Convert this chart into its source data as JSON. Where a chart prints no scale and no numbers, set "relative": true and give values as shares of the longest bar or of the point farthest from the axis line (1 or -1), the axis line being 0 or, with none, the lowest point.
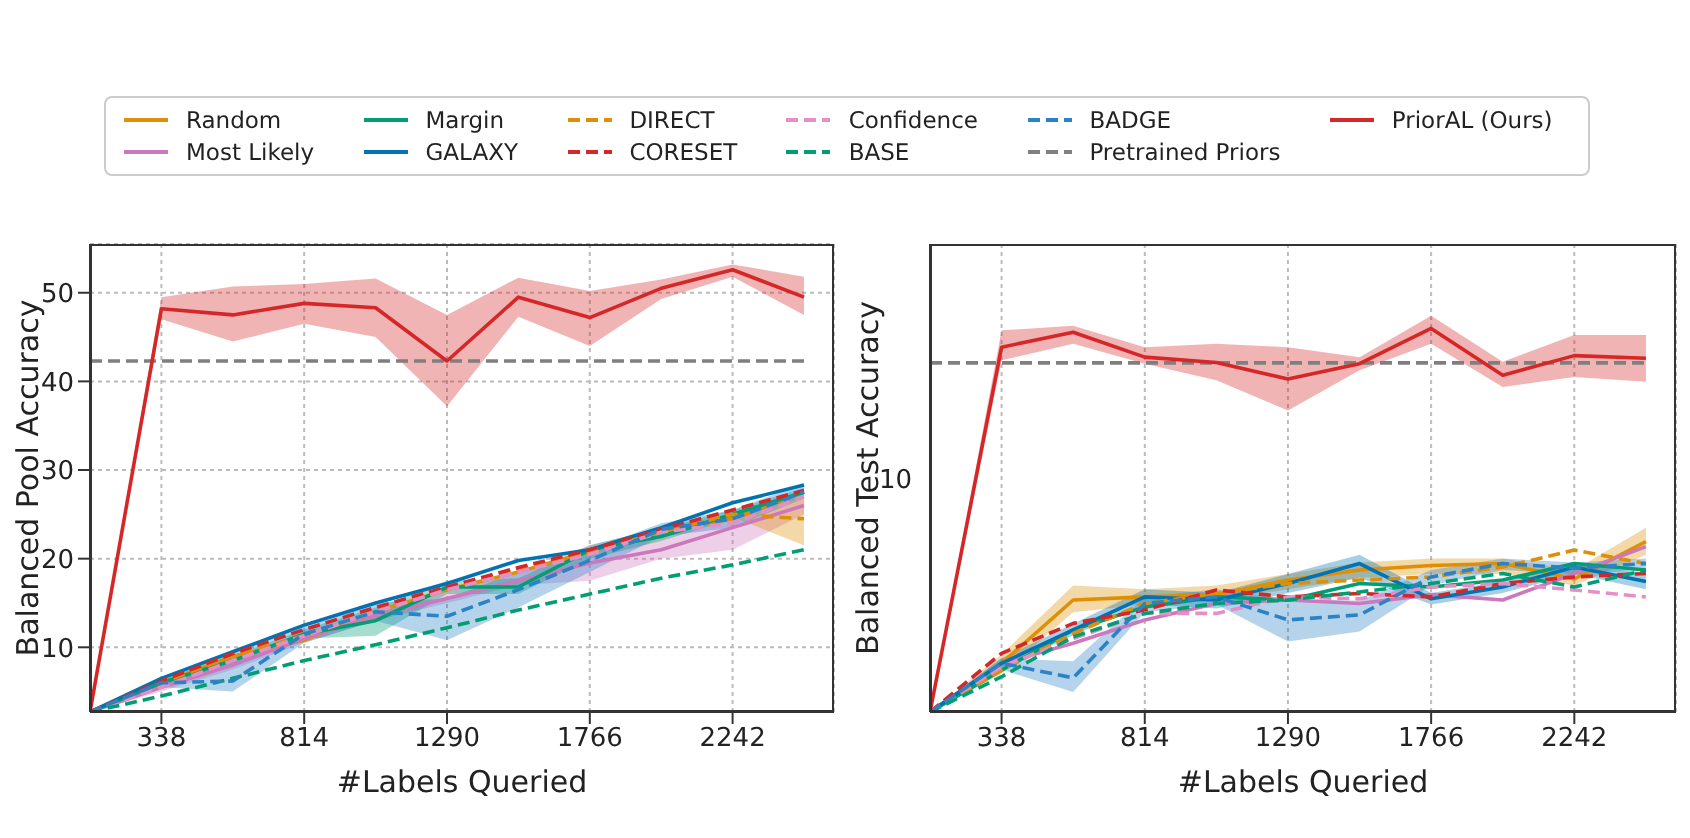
{
  "chart_data": [
    {
      "type": "line",
      "xlabel": "#Labels Queried",
      "ylabel": "Balanced Pool Accuracy",
      "x": [
        100,
        338,
        576,
        814,
        1052,
        1290,
        1528,
        1766,
        2004,
        2242,
        2480
      ],
      "xlim": [
        100,
        2580
      ],
      "xticks": [
        338,
        814,
        1290,
        1766,
        2242
      ],
      "ylim": [
        2.7,
        55.5
      ],
      "yticks": [
        10,
        20,
        30,
        40,
        50
      ],
      "grid": true,
      "legend": "top",
      "marker": "none",
      "series": [
        {
          "name": "Random",
          "color": "#de8f05",
          "line_style": "solid",
          "values": [
            2.7,
            6,
            9,
            10.8,
            14,
            16.5,
            18.5,
            20.8,
            23,
            24.5,
            27.5
          ]
        },
        {
          "name": "Most Likely",
          "color": "#cc78bc",
          "line_style": "solid",
          "values": [
            2.7,
            5.5,
            8,
            11,
            13.5,
            15.5,
            17.5,
            19.5,
            21,
            23.5,
            26
          ],
          "lower": [
            2.7,
            5,
            7.5,
            10.5,
            13,
            15,
            17,
            17.5,
            20,
            21,
            25
          ],
          "upper": [
            2.7,
            6,
            8.5,
            11.5,
            14,
            16.5,
            18.5,
            21.5,
            23.5,
            25,
            27
          ]
        },
        {
          "name": "Margin",
          "color": "#029e73",
          "line_style": "solid",
          "values": [
            2.7,
            6,
            8.5,
            11.5,
            13,
            16.8,
            16.8,
            21,
            22.5,
            25,
            27.5
          ],
          "lower": [
            2.7,
            5.7,
            8,
            11,
            11.3,
            16,
            16,
            20,
            22,
            24.5,
            27
          ],
          "upper": [
            2.7,
            6.3,
            9,
            12,
            14.5,
            17.5,
            17.8,
            21.5,
            23.5,
            25.5,
            28
          ]
        },
        {
          "name": "GALAXY",
          "color": "#0173b2",
          "line_style": "solid",
          "values": [
            2.7,
            6.5,
            9.5,
            12.5,
            15,
            17.2,
            19.8,
            21,
            23.5,
            26.3,
            28.3
          ]
        },
        {
          "name": "DIRECT",
          "color": "#de8f05",
          "line_style": "dashed",
          "values": [
            2.7,
            6,
            9,
            11.3,
            14,
            16.5,
            18.8,
            20.8,
            23,
            25,
            24.5
          ],
          "lower": [
            null,
            null,
            null,
            null,
            null,
            null,
            null,
            null,
            null,
            24.7,
            21.5
          ],
          "upper": [
            null,
            null,
            null,
            null,
            null,
            null,
            null,
            null,
            null,
            25.3,
            27
          ]
        },
        {
          "name": "CORESET",
          "color": "#d62728",
          "line_style": "dashed",
          "values": [
            2.7,
            6.2,
            9.3,
            12,
            14.5,
            16.8,
            19,
            21,
            23.3,
            25.5,
            27.7
          ]
        },
        {
          "name": "Confidence",
          "color": "#e58fc8",
          "line_style": "dashed",
          "values": [
            2.7,
            5.5,
            8.5,
            11.3,
            14,
            16.5,
            18.5,
            20.5,
            23,
            24,
            27
          ]
        },
        {
          "name": "BASE",
          "color": "#029e73",
          "line_style": "dashed",
          "values": [
            2.7,
            4.5,
            6.5,
            8.5,
            10.3,
            12.2,
            14.2,
            16,
            17.8,
            19.3,
            21
          ]
        },
        {
          "name": "BADGE",
          "color": "#2b83c6",
          "line_style": "dashed",
          "values": [
            2.7,
            6,
            6.2,
            11.5,
            14,
            13.5,
            16.5,
            19.8,
            23.3,
            24.5,
            27.5
          ],
          "lower": [
            2.7,
            5.5,
            5,
            10.5,
            13,
            10.8,
            14.5,
            18.5,
            22.5,
            23.5,
            26.8
          ],
          "upper": [
            2.7,
            6.5,
            9.5,
            12.5,
            15,
            15.5,
            18.5,
            21,
            24,
            25.5,
            28.5
          ]
        },
        {
          "name": "Pretrained Priors",
          "color": "#7f7f7f",
          "line_style": "dashed",
          "values": [
            42.3,
            42.3,
            42.3,
            42.3,
            42.3,
            42.3,
            42.3,
            42.3,
            42.3,
            42.3,
            42.3
          ]
        },
        {
          "name": "PriorAL (Ours)",
          "color": "#d62728",
          "line_style": "solid",
          "values": [
            2.7,
            48.2,
            47.5,
            48.8,
            48.3,
            42.3,
            49.5,
            47.2,
            50.5,
            52.6,
            49.5
          ],
          "lower": [
            2.7,
            47,
            44.5,
            46.5,
            45,
            37.2,
            47.3,
            44,
            49.3,
            51.8,
            47.5
          ],
          "upper": [
            2.7,
            49.5,
            50.7,
            51,
            51.6,
            47.5,
            51.7,
            50.2,
            51.5,
            53.2,
            51.8
          ]
        }
      ]
    },
    {
      "type": "line",
      "xlabel": "#Labels Queried",
      "ylabel": "Balanced Test Accuracy",
      "relative": true,
      "x": [
        100,
        338,
        576,
        814,
        1052,
        1290,
        1528,
        1766,
        2004,
        2242,
        2480
      ],
      "xlim": [
        100,
        2580
      ],
      "xticks": [
        338,
        814,
        1290,
        1766,
        2242
      ],
      "annotations": [
        "10"
      ],
      "grid": "x",
      "marker": "none",
      "series": [
        {
          "color": "#de8f05",
          "line_style": "solid",
          "values": [
            0,
            0.127,
            0.292,
            0.3,
            0.306,
            0.344,
            0.37,
            0.382,
            0.387,
            0.347,
            0.444
          ],
          "lower": [
            0,
            0.1,
            0.26,
            0.28,
            0.29,
            0.32,
            0.35,
            0.36,
            0.36,
            0.33,
            0.41
          ],
          "upper": [
            0,
            0.15,
            0.33,
            0.32,
            0.33,
            0.36,
            0.39,
            0.4,
            0.4,
            0.37,
            0.48
          ]
        },
        {
          "color": "#cc78bc",
          "line_style": "solid",
          "values": [
            0,
            0.127,
            0.179,
            0.24,
            0.283,
            0.292,
            0.283,
            0.306,
            0.292,
            0.361,
            0.431
          ]
        },
        {
          "color": "#029e73",
          "line_style": "solid",
          "values": [
            0,
            0.109,
            0.214,
            0.274,
            0.3,
            0.292,
            0.335,
            0.326,
            0.344,
            0.387,
            0.37
          ]
        },
        {
          "color": "#0173b2",
          "line_style": "solid",
          "values": [
            0,
            0.127,
            0.214,
            0.3,
            0.292,
            0.335,
            0.387,
            0.295,
            0.326,
            0.378,
            0.34
          ],
          "lower": [
            0,
            0.11,
            0.2,
            0.28,
            0.27,
            0.31,
            0.35,
            0.28,
            0.31,
            0.36,
            0.32
          ],
          "upper": [
            0,
            0.14,
            0.23,
            0.32,
            0.31,
            0.36,
            0.41,
            0.31,
            0.34,
            0.39,
            0.36
          ]
        },
        {
          "color": "#de8f05",
          "line_style": "dashed",
          "values": [
            0,
            0.109,
            0.205,
            0.283,
            0.309,
            0.335,
            0.344,
            0.352,
            0.378,
            0.422,
            0.387
          ]
        },
        {
          "color": "#d62728",
          "line_style": "dashed",
          "values": [
            0,
            0.153,
            0.231,
            0.266,
            0.318,
            0.3,
            0.309,
            0.3,
            0.335,
            0.352,
            0.361
          ]
        },
        {
          "color": "#e58fc8",
          "line_style": "dashed",
          "values": [
            0,
            0.118,
            0.191,
            0.257,
            0.257,
            0.3,
            0.295,
            0.326,
            0.335,
            0.318,
            0.3
          ]
        },
        {
          "color": "#029e73",
          "line_style": "dashed",
          "values": [
            0,
            0.092,
            0.196,
            0.257,
            0.283,
            0.292,
            0.313,
            0.335,
            0.361,
            0.326,
            0.37
          ]
        },
        {
          "color": "#2b83c6",
          "line_style": "dashed",
          "values": [
            0,
            0.127,
            0.089,
            0.283,
            0.3,
            0.24,
            0.253,
            0.352,
            0.387,
            0.375,
            0.387
          ],
          "lower": [
            0,
            0.11,
            0.052,
            0.26,
            0.28,
            0.184,
            0.21,
            0.33,
            0.37,
            0.36,
            0.37
          ],
          "upper": [
            0,
            0.14,
            0.132,
            0.3,
            0.32,
            0.295,
            0.29,
            0.37,
            0.4,
            0.39,
            0.4
          ]
        },
        {
          "color": "#7f7f7f",
          "line_style": "dashed",
          "values": [
            0.91,
            0.91,
            0.91,
            0.91,
            0.91,
            0.91,
            0.91,
            0.91,
            0.91,
            0.91,
            0.91
          ]
        },
        {
          "color": "#d62728",
          "line_style": "solid",
          "values": [
            0,
            0.951,
            0.99,
            0.925,
            0.911,
            0.868,
            0.908,
            1,
            0.878,
            0.929,
            0.922
          ],
          "lower": [
            0,
            0.917,
            0.96,
            0.908,
            0.865,
            0.786,
            0.891,
            0.96,
            0.847,
            0.873,
            0.861
          ],
          "upper": [
            0,
            0.995,
            1.007,
            0.951,
            0.96,
            0.951,
            0.925,
            1.033,
            0.913,
            0.983,
            0.983
          ]
        }
      ]
    }
  ]
}
